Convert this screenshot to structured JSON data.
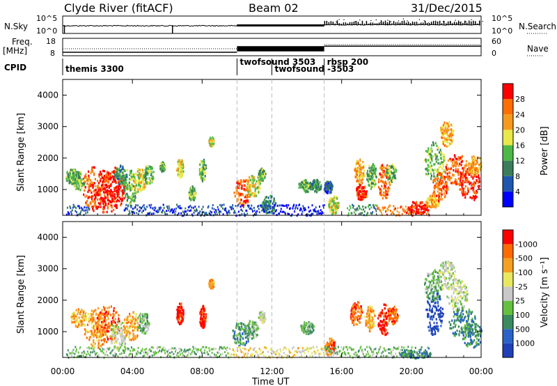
{
  "header": {
    "station": "Clyde River (fitACF)",
    "beam": "Beam 02",
    "date": "31/Dec/2015"
  },
  "chart_data": [
    {
      "type": "line",
      "name_panel": "nsky",
      "ylabel_left": "N.Sky",
      "ylabel_right": "N.Search",
      "left_ticks": [
        "10^5",
        "10^0"
      ],
      "right_ticks": [
        "10^5",
        "10^0"
      ],
      "right_legend_style": "dotted",
      "x_range": [
        0,
        24
      ]
    },
    {
      "type": "line",
      "name_panel": "freq",
      "ylabel_left": [
        "Freq.",
        "[MHz]"
      ],
      "ylabel_right": "Nave",
      "left_ticks": [
        "18",
        "8"
      ],
      "right_ticks": [
        "60",
        "0"
      ],
      "right_legend_style": "dotted",
      "freq_segments_MHz": [
        {
          "x0": 0,
          "x1": 10,
          "value": 10.0
        },
        {
          "x0": 10,
          "x1": 15,
          "value": 12.5
        },
        {
          "x0": 15,
          "x1": 24,
          "value": 13.5
        }
      ]
    },
    {
      "type": "table",
      "name_panel": "cpid",
      "label": "CPID",
      "entries": [
        {
          "label": "themis 3300",
          "x": 0.0
        },
        {
          "label": "twofsound 3503",
          "x": 10.0
        },
        {
          "label": "twofsound -3503",
          "x": 12.0
        },
        {
          "label": "rbsp 200",
          "x": 15.0
        }
      ]
    },
    {
      "type": "heatmap",
      "name_panel": "power",
      "ylabel": "Slant Range [km]",
      "yticks": [
        1000,
        2000,
        3000,
        4000
      ],
      "ylim": [
        180,
        4500
      ],
      "xlim": [
        0,
        24
      ],
      "colorbar_label": "Power [dB]",
      "colorbar_ticks": [
        "4",
        "8",
        "12",
        "16",
        "20",
        "24",
        "28"
      ],
      "colors": [
        "#0000ff",
        "#1f56b0",
        "#3a7d5a",
        "#4db848",
        "#e8e84a",
        "#f59a1e",
        "#ff6f00",
        "#ff0000"
      ],
      "blobs": [
        {
          "t": 0.5,
          "r": 1450,
          "dt": 0.35,
          "dr": 250,
          "c": 3
        },
        {
          "t": 0.9,
          "r": 1300,
          "dt": 0.35,
          "dr": 300,
          "c": 3
        },
        {
          "t": 1.8,
          "r": 1050,
          "dt": 0.7,
          "dr": 700,
          "c": 6
        },
        {
          "t": 2.4,
          "r": 950,
          "dt": 0.8,
          "dr": 700,
          "c": 7
        },
        {
          "t": 3.0,
          "r": 1100,
          "dt": 0.6,
          "dr": 650,
          "c": 7
        },
        {
          "t": 3.3,
          "r": 1500,
          "dt": 0.35,
          "dr": 300,
          "c": 2
        },
        {
          "t": 3.8,
          "r": 1100,
          "dt": 0.4,
          "dr": 600,
          "c": 3
        },
        {
          "t": 4.4,
          "r": 1300,
          "dt": 0.35,
          "dr": 400,
          "c": 4
        },
        {
          "t": 4.9,
          "r": 1500,
          "dt": 0.3,
          "dr": 300,
          "c": 3
        },
        {
          "t": 5.7,
          "r": 1750,
          "dt": 0.15,
          "dr": 150,
          "c": 3
        },
        {
          "t": 6.7,
          "r": 1700,
          "dt": 0.2,
          "dr": 300,
          "c": 4
        },
        {
          "t": 7.4,
          "r": 900,
          "dt": 0.2,
          "dr": 250,
          "c": 3
        },
        {
          "t": 8.0,
          "r": 1650,
          "dt": 0.2,
          "dr": 350,
          "c": 3
        },
        {
          "t": 8.5,
          "r": 2550,
          "dt": 0.15,
          "dr": 150,
          "c": 4
        },
        {
          "t": 10.3,
          "r": 950,
          "dt": 0.5,
          "dr": 450,
          "c": 6
        },
        {
          "t": 10.9,
          "r": 1150,
          "dt": 0.4,
          "dr": 350,
          "c": 4
        },
        {
          "t": 11.4,
          "r": 1500,
          "dt": 0.2,
          "dr": 200,
          "c": 3
        },
        {
          "t": 11.8,
          "r": 550,
          "dt": 0.4,
          "dr": 300,
          "c": 2
        },
        {
          "t": 13.9,
          "r": 1150,
          "dt": 0.4,
          "dr": 200,
          "c": 3
        },
        {
          "t": 14.5,
          "r": 1150,
          "dt": 0.3,
          "dr": 200,
          "c": 2
        },
        {
          "t": 15.5,
          "r": 550,
          "dt": 0.3,
          "dr": 300,
          "c": 4
        },
        {
          "t": 15.2,
          "r": 1100,
          "dt": 0.25,
          "dr": 200,
          "c": 1
        },
        {
          "t": 17.0,
          "r": 1600,
          "dt": 0.3,
          "dr": 400,
          "c": 5
        },
        {
          "t": 17.7,
          "r": 1450,
          "dt": 0.3,
          "dr": 400,
          "c": 3
        },
        {
          "t": 18.4,
          "r": 1300,
          "dt": 0.35,
          "dr": 600,
          "c": 6
        },
        {
          "t": 18.8,
          "r": 1550,
          "dt": 0.3,
          "dr": 300,
          "c": 3
        },
        {
          "t": 17.1,
          "r": 950,
          "dt": 0.35,
          "dr": 250,
          "c": 7
        },
        {
          "t": 20.3,
          "r": 450,
          "dt": 0.6,
          "dr": 200,
          "c": 7
        },
        {
          "t": 21.2,
          "r": 650,
          "dt": 0.4,
          "dr": 200,
          "c": 5
        },
        {
          "t": 21.3,
          "r": 1900,
          "dt": 0.6,
          "dr": 650,
          "c": 3
        },
        {
          "t": 21.6,
          "r": 1100,
          "dt": 0.45,
          "dr": 450,
          "c": 6
        },
        {
          "t": 22.0,
          "r": 2800,
          "dt": 0.4,
          "dr": 400,
          "c": 5
        },
        {
          "t": 22.6,
          "r": 1650,
          "dt": 0.7,
          "dr": 500,
          "c": 6
        },
        {
          "t": 23.3,
          "r": 1200,
          "dt": 0.6,
          "dr": 550,
          "c": 7
        },
        {
          "t": 23.6,
          "r": 1800,
          "dt": 0.4,
          "dr": 300,
          "c": 5
        }
      ],
      "ground": [
        {
          "t0": 0.2,
          "t1": 1.5,
          "c": 1
        },
        {
          "t0": 3.5,
          "t1": 9.5,
          "c": 1
        },
        {
          "t0": 9.5,
          "t1": 12.0,
          "c": 1
        },
        {
          "t0": 12.0,
          "t1": 15.0,
          "c": 0
        },
        {
          "t0": 16.3,
          "t1": 18.0,
          "c": 2
        },
        {
          "t0": 18.0,
          "t1": 20.0,
          "c": 6
        },
        {
          "t0": 20.0,
          "t1": 21.0,
          "c": 7
        }
      ]
    },
    {
      "type": "heatmap",
      "name_panel": "velocity",
      "ylabel": "Slant Range [km]",
      "yticks": [
        1000,
        2000,
        3000,
        4000
      ],
      "ylim": [
        180,
        4500
      ],
      "xlim": [
        0,
        24
      ],
      "colorbar_label": "Velocity [m s⁻¹]",
      "colorbar_ticks": [
        "1000",
        "500",
        "100",
        "25",
        "-25",
        "-100",
        "-500",
        "-1000"
      ],
      "colors": [
        "#2040b8",
        "#2a63c8",
        "#3a8a60",
        "#66c040",
        "#c8c8c8",
        "#e8e860",
        "#f5a020",
        "#ff6a00",
        "#ff0000"
      ],
      "blobs": [
        {
          "t": 0.9,
          "r": 1450,
          "dt": 0.45,
          "dr": 300,
          "c": 6
        },
        {
          "t": 1.9,
          "r": 1150,
          "dt": 0.7,
          "dr": 650,
          "c": 6
        },
        {
          "t": 2.6,
          "r": 1300,
          "dt": 0.7,
          "dr": 600,
          "c": 7
        },
        {
          "t": 3.2,
          "r": 900,
          "dt": 0.5,
          "dr": 500,
          "c": 4
        },
        {
          "t": 3.9,
          "r": 1200,
          "dt": 0.45,
          "dr": 500,
          "c": 6
        },
        {
          "t": 4.6,
          "r": 1300,
          "dt": 0.35,
          "dr": 350,
          "c": 3
        },
        {
          "t": 6.7,
          "r": 1600,
          "dt": 0.2,
          "dr": 350,
          "c": 8
        },
        {
          "t": 8.0,
          "r": 1500,
          "dt": 0.2,
          "dr": 350,
          "c": 8
        },
        {
          "t": 8.5,
          "r": 2550,
          "dt": 0.15,
          "dr": 150,
          "c": 6
        },
        {
          "t": 10.2,
          "r": 950,
          "dt": 0.5,
          "dr": 400,
          "c": 2
        },
        {
          "t": 10.8,
          "r": 1100,
          "dt": 0.4,
          "dr": 300,
          "c": 3
        },
        {
          "t": 11.4,
          "r": 1500,
          "dt": 0.2,
          "dr": 200,
          "c": 4
        },
        {
          "t": 14.0,
          "r": 1150,
          "dt": 0.4,
          "dr": 200,
          "c": 3
        },
        {
          "t": 15.3,
          "r": 550,
          "dt": 0.3,
          "dr": 300,
          "c": 7
        },
        {
          "t": 16.8,
          "r": 1600,
          "dt": 0.35,
          "dr": 400,
          "c": 7
        },
        {
          "t": 17.6,
          "r": 1450,
          "dt": 0.3,
          "dr": 400,
          "c": 6
        },
        {
          "t": 18.4,
          "r": 1400,
          "dt": 0.35,
          "dr": 500,
          "c": 8
        },
        {
          "t": 18.9,
          "r": 1550,
          "dt": 0.3,
          "dr": 300,
          "c": 7
        },
        {
          "t": 21.3,
          "r": 1600,
          "dt": 0.5,
          "dr": 700,
          "c": 0
        },
        {
          "t": 21.2,
          "r": 2500,
          "dt": 0.5,
          "dr": 500,
          "c": 3
        },
        {
          "t": 22.0,
          "r": 2800,
          "dt": 0.5,
          "dr": 500,
          "c": 4
        },
        {
          "t": 22.6,
          "r": 2200,
          "dt": 0.6,
          "dr": 500,
          "c": 4
        },
        {
          "t": 22.9,
          "r": 1300,
          "dt": 0.8,
          "dr": 500,
          "c": 2
        },
        {
          "t": 23.5,
          "r": 900,
          "dt": 0.6,
          "dr": 400,
          "c": 2
        },
        {
          "t": 20.2,
          "r": 300,
          "dt": 0.9,
          "dr": 150,
          "c": 2
        }
      ],
      "ground": [
        {
          "t0": 0.2,
          "t1": 9.5,
          "c": 3
        },
        {
          "t0": 9.5,
          "t1": 15.0,
          "c": 5
        },
        {
          "t0": 15.0,
          "t1": 19.5,
          "c": 3
        },
        {
          "t0": 19.5,
          "t1": 21.0,
          "c": 2
        }
      ]
    }
  ],
  "time_axis": {
    "xlabel": "Time UT",
    "ticks": [
      {
        "t": 0,
        "label": "00:00"
      },
      {
        "t": 4,
        "label": "04:00"
      },
      {
        "t": 8,
        "label": "08:00"
      },
      {
        "t": 12,
        "label": "12:00"
      },
      {
        "t": 16,
        "label": "16:00"
      },
      {
        "t": 20,
        "label": "20:00"
      },
      {
        "t": 24,
        "label": "00:00"
      }
    ],
    "cpid_change_times": [
      10,
      12,
      15
    ]
  }
}
